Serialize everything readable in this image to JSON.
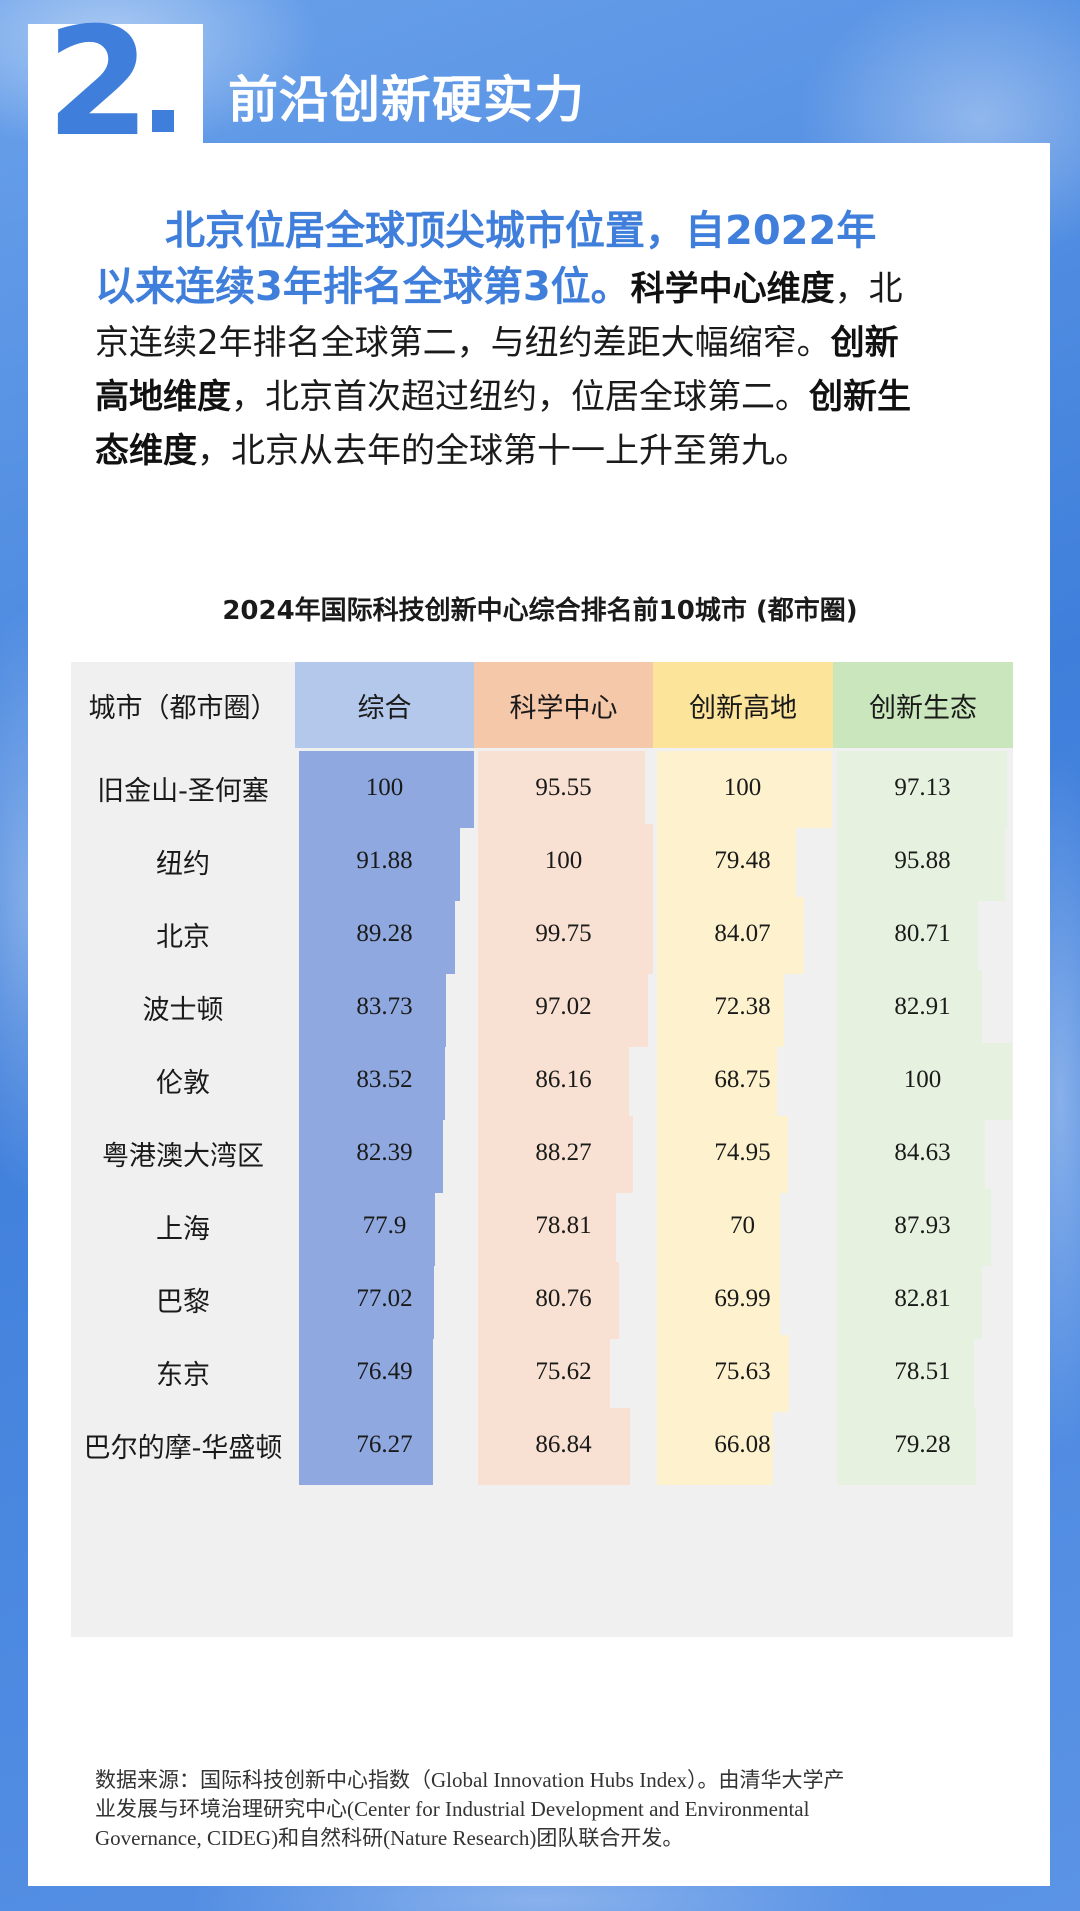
{
  "header": {
    "number": "2",
    "title": "前沿创新硬实力"
  },
  "intro": {
    "highlight_1": "北京位居全球顶尖城市位置，自2022年",
    "highlight_2": "以来连续3年排名全球第3位。",
    "bold_science": "科学中心维度",
    "text_a": "，北",
    "text_b": "京连续2年排名全球第二，与纽约差距大幅缩窄。",
    "bold_innovation": "创新",
    "bold_innovation_2": "高地维度",
    "text_c": "，北京首次超过纽约，位居全球第二。",
    "bold_eco": "创新生",
    "bold_eco_2": "态维度",
    "text_d": "，北京从去年的全球第十一上升至第九。"
  },
  "chart_data": {
    "type": "table",
    "title": "2024年国际科技创新中心综合排名前10城市 (都市圈)",
    "columns": [
      "城市（都市圈）",
      "综合",
      "科学中心",
      "创新高地",
      "创新生态"
    ],
    "colors": {
      "综合": "#8fa9e0",
      "科学中心": "#f8e1d2",
      "创新高地": "#fdf2cd",
      "创新生态": "#e6f2df"
    },
    "rows": [
      {
        "city": "旧金山-圣何塞",
        "values": [
          "100",
          "95.55",
          "100",
          "97.13"
        ]
      },
      {
        "city": "纽约",
        "values": [
          "91.88",
          "100",
          "79.48",
          "95.88"
        ]
      },
      {
        "city": "北京",
        "values": [
          "89.28",
          "99.75",
          "84.07",
          "80.71"
        ]
      },
      {
        "city": "波士顿",
        "values": [
          "83.73",
          "97.02",
          "72.38",
          "82.91"
        ]
      },
      {
        "city": "伦敦",
        "values": [
          "83.52",
          "86.16",
          "68.75",
          "100"
        ]
      },
      {
        "city": "粤港澳大湾区",
        "values": [
          "82.39",
          "88.27",
          "74.95",
          "84.63"
        ]
      },
      {
        "city": "上海",
        "values": [
          "77.9",
          "78.81",
          "70",
          "87.93"
        ]
      },
      {
        "city": "巴黎",
        "values": [
          "77.02",
          "80.76",
          "69.99",
          "82.81"
        ]
      },
      {
        "city": "东京",
        "values": [
          "76.49",
          "75.62",
          "75.63",
          "78.51"
        ]
      },
      {
        "city": "巴尔的摩-华盛顿",
        "values": [
          "76.27",
          "86.84",
          "66.08",
          "79.28"
        ]
      }
    ]
  },
  "source": {
    "line1": "数据来源：国际科技创新中心指数（Global Innovation Hubs Index）。由清华大学产",
    "line2": "业发展与环境治理研究中心(Center for Industrial Development and Environmental",
    "line3": "Governance, CIDEG)和自然科研(Nature Research)团队联合开发。"
  }
}
